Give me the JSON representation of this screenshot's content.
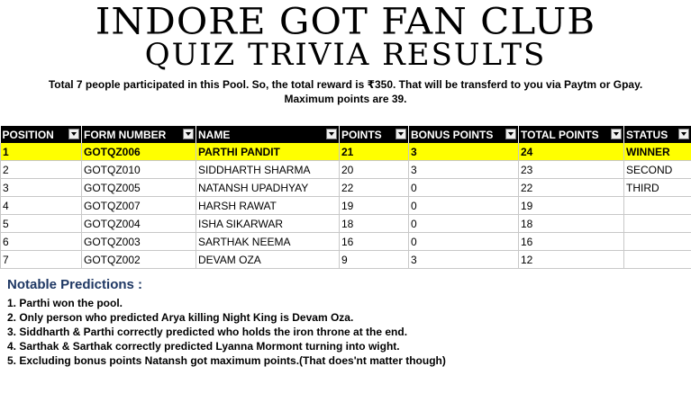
{
  "title": {
    "line1": "INDORE GOT FAN CLUB",
    "line2": "QUIZ TRIVIA RESULTS"
  },
  "intro": {
    "line1": "Total 7  people participated in this Pool. So, the total  reward is ₹350.  That will be transferd to you via Paytm or Gpay.",
    "line2": "Maximum points are 39."
  },
  "table": {
    "columns": [
      "POSITION",
      "FORM NUMBER",
      "NAME",
      "POINTS",
      "BONUS POINTS",
      "TOTAL POINTS",
      "STATUS"
    ],
    "rows": [
      [
        "1",
        "GOTQZ006",
        "PARTHI PANDIT",
        "21",
        "3",
        "24",
        "WINNER"
      ],
      [
        "2",
        "GOTQZ010",
        "SIDDHARTH SHARMA",
        "20",
        "3",
        "23",
        "SECOND"
      ],
      [
        "3",
        "GOTQZ005",
        "NATANSH UPADHYAY",
        "22",
        "0",
        "22",
        "THIRD"
      ],
      [
        "4",
        "GOTQZ007",
        "HARSH RAWAT",
        "19",
        "0",
        "19",
        ""
      ],
      [
        "5",
        "GOTQZ004",
        "ISHA SIKARWAR",
        "18",
        "0",
        "18",
        ""
      ],
      [
        "6",
        "GOTQZ003",
        "SARTHAK NEEMA",
        "16",
        "0",
        "16",
        ""
      ],
      [
        "7",
        "GOTQZ002",
        "DEVAM OZA",
        "9",
        "3",
        "12",
        ""
      ]
    ],
    "highlight_color": "#ffff00",
    "header_bg": "#000000"
  },
  "notes": {
    "heading": "Notable Predictions :",
    "heading_color": "#1f3864",
    "items": [
      "1. Parthi won the pool.",
      "2. Only person who predicted Arya killing Night King is Devam Oza.",
      "3. Siddharth & Parthi correctly predicted who holds the iron throne at the end.",
      "4. Sarthak & Sarthak correctly predicted Lyanna Mormont turning into wight.",
      "5. Excluding bonus points Natansh got maximum points.(That does'nt matter though)"
    ]
  }
}
